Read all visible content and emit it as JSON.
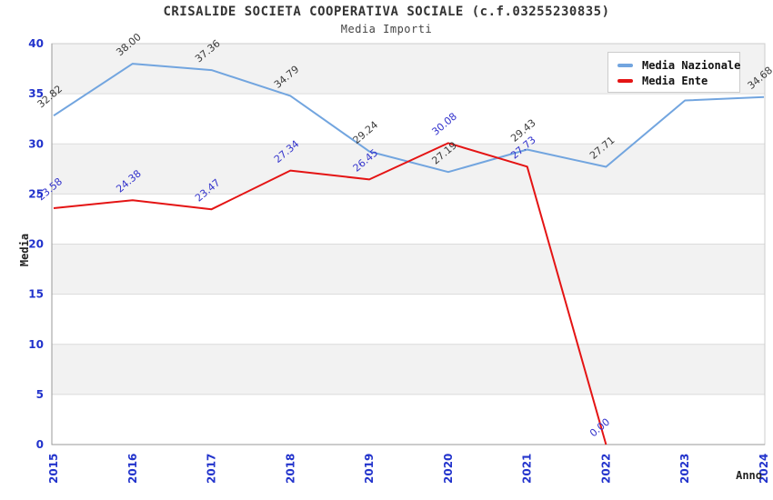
{
  "title": "CRISALIDE SOCIETA COOPERATIVA SOCIALE (c.f.03255230835)",
  "subtitle": "Media Importi",
  "legend": {
    "items": [
      {
        "label": "Media Nazionale",
        "color": "#72a5df"
      },
      {
        "label": "Media Ente",
        "color": "#e41414"
      }
    ]
  },
  "chart_data": {
    "type": "line",
    "title": "CRISALIDE SOCIETA COOPERATIVA SOCIALE (c.f.03255230835)",
    "subtitle": "Media Importi",
    "x": [
      "2015",
      "2016",
      "2017",
      "2018",
      "2019",
      "2020",
      "2021",
      "2022",
      "2023",
      "2024"
    ],
    "series": [
      {
        "name": "Media Nazionale",
        "color": "#72a5df",
        "label_color": "#3a3a3a",
        "values": [
          32.82,
          38.0,
          37.36,
          34.79,
          29.24,
          27.19,
          29.43,
          27.71,
          34.33,
          34.68
        ]
      },
      {
        "name": "Media Ente",
        "color": "#e41414",
        "label_color": "#3333cc",
        "values": [
          23.58,
          24.38,
          23.47,
          27.34,
          26.45,
          30.08,
          27.73,
          0.0,
          null,
          null
        ]
      }
    ],
    "xlabel": "Anno",
    "ylabel": "Media",
    "ylim": [
      0,
      40
    ],
    "yticks": [
      0,
      5,
      10,
      15,
      20,
      25,
      30,
      35,
      40
    ],
    "grid": "horizontal-bands-every-5",
    "band_colors": [
      "#ffffff",
      "#f2f2f2"
    ],
    "gridline_color": "#dcdcdc",
    "tick_color": "#2233cc",
    "axis_title_color": "#222222",
    "legend_position": "top-right",
    "note_2023_nazionale": "label hidden behind legend box"
  }
}
